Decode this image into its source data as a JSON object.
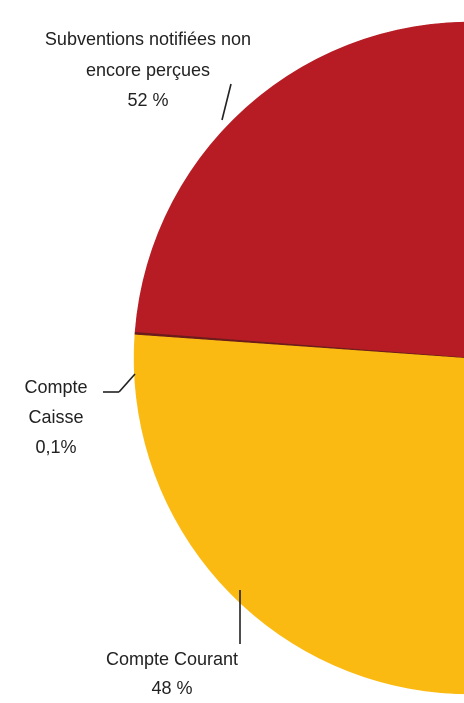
{
  "chart_data": {
    "type": "pie",
    "slices": [
      {
        "label": "Subventions notifiées non encore perçues",
        "label_lines": [
          "Subventions notifiées non",
          "encore perçues"
        ],
        "value_text": "52 %",
        "value": 52,
        "color": "#B71C24"
      },
      {
        "label": "Compte Caisse",
        "label_lines": [
          "Compte",
          "Caisse"
        ],
        "value_text": "0,1%",
        "value": 0.1,
        "color": "#6B1B1B"
      },
      {
        "label": "Compte Courant",
        "label_lines": [
          "Compte Courant"
        ],
        "value_text": "48 %",
        "value": 48,
        "color": "#FBBA12"
      }
    ],
    "legend": "none",
    "title": ""
  }
}
